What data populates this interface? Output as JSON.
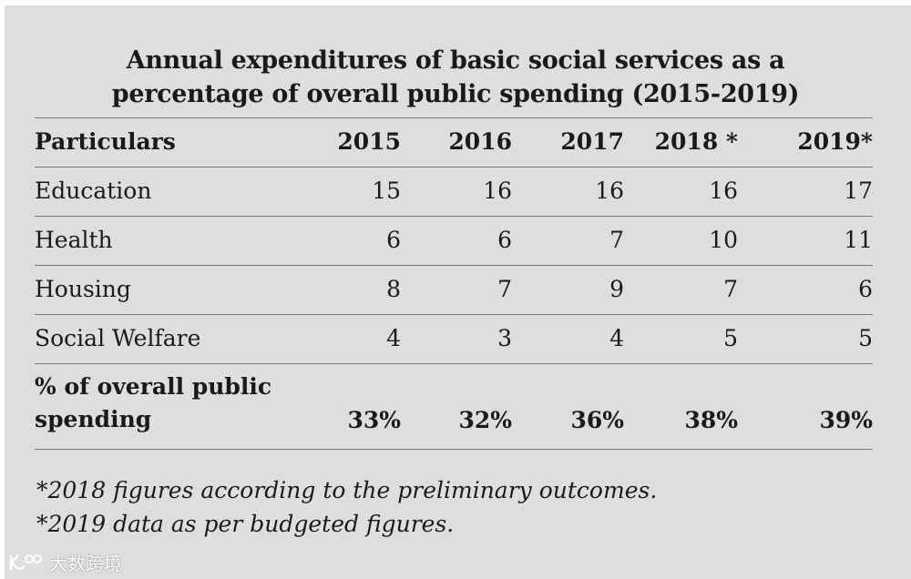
{
  "chart_data": {
    "type": "table",
    "title": "Annual expenditures of basic social services as a percentage of overall public spending (2015-2019)",
    "title_lines": [
      "Annual expenditures of basic social services as a",
      "percentage of overall public spending (2015-2019)"
    ],
    "columns": [
      "Particulars",
      "2015",
      "2016",
      "2017",
      "2018 *",
      "2019*"
    ],
    "rows": [
      {
        "label": "Education",
        "values": [
          "15",
          "16",
          "16",
          "16",
          "17"
        ]
      },
      {
        "label": "Health",
        "values": [
          "6",
          "6",
          "7",
          "10",
          "11"
        ]
      },
      {
        "label": "Housing",
        "values": [
          "8",
          "7",
          "9",
          "7",
          "6"
        ]
      },
      {
        "label": "Social Welfare",
        "values": [
          "4",
          "3",
          "4",
          "5",
          "5"
        ]
      }
    ],
    "total": {
      "label": "% of overall public spending",
      "values": [
        "33%",
        "32%",
        "36%",
        "38%",
        "39%"
      ]
    },
    "notes": [
      "*2018 figures according to the preliminary outcomes.",
      "*2019 data as per budgeted figures."
    ]
  },
  "watermark": {
    "text": "大数跨境"
  }
}
